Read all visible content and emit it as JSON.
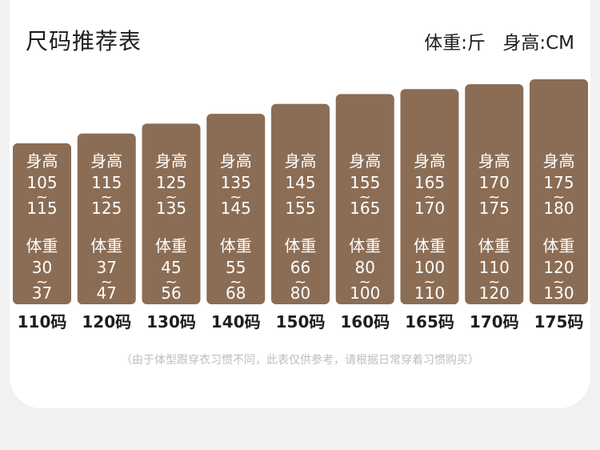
{
  "header": {
    "title": "尺码推荐表",
    "weight_unit": "体重:斤",
    "height_unit": "身高:CM"
  },
  "note": "（由于体型跟穿衣习惯不同，此表仅供参考，请根据日常穿着习惯购买）",
  "colors": {
    "bar": "#8b6d55",
    "text": "#1e1e1e",
    "note": "#bdbdbd"
  },
  "chart_data": {
    "type": "bar",
    "height_label": "身高",
    "weight_label": "体重",
    "categories": [
      "110码",
      "120码",
      "130码",
      "140码",
      "150码",
      "160码",
      "165码",
      "170码",
      "175码"
    ],
    "height_range": [
      [
        105,
        115
      ],
      [
        115,
        125
      ],
      [
        125,
        135
      ],
      [
        135,
        145
      ],
      [
        145,
        155
      ],
      [
        155,
        165
      ],
      [
        165,
        170
      ],
      [
        170,
        175
      ],
      [
        175,
        180
      ]
    ],
    "weight_range": [
      [
        30,
        37
      ],
      [
        37,
        47
      ],
      [
        45,
        56
      ],
      [
        55,
        68
      ],
      [
        66,
        80
      ],
      [
        80,
        100
      ],
      [
        100,
        110
      ],
      [
        110,
        120
      ],
      [
        120,
        130
      ]
    ],
    "sizes": [
      110,
      120,
      130,
      140,
      150,
      160,
      165,
      170,
      175
    ]
  }
}
